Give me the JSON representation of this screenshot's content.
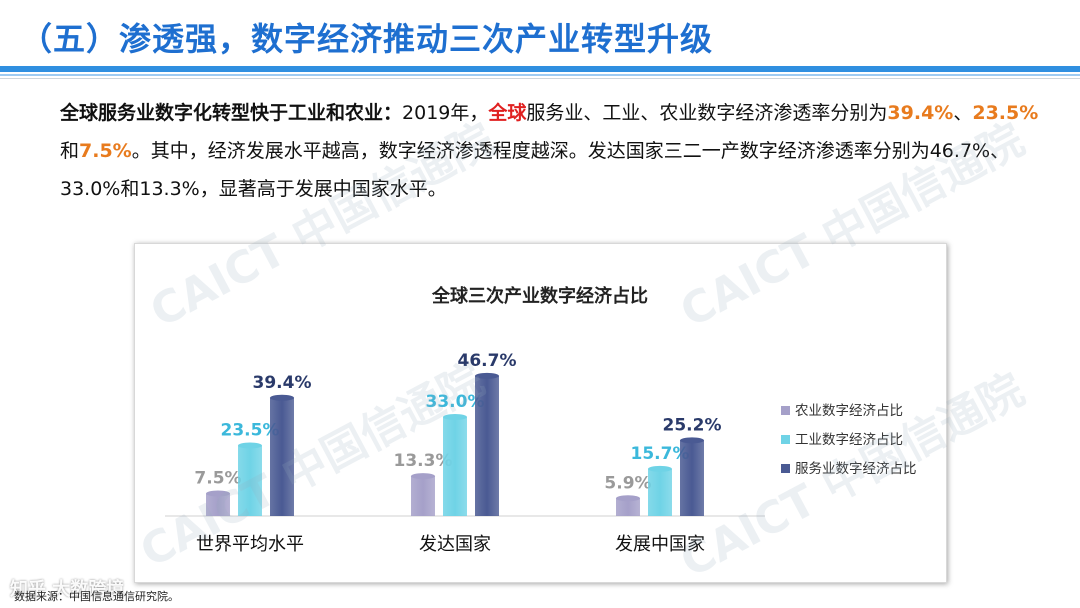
{
  "title": "（五）渗透强，数字经济推动三次产业转型升级",
  "paragraph": {
    "lead": "全球服务业数字化转型快于工业和农业：",
    "p1": "2019年，",
    "p2": "全球",
    "p3": "服务业、工业、农业数字经济渗透率分别为",
    "v1": "39.4%",
    "sep1": "、",
    "v2": "23.5%",
    "sep2": "和",
    "v3": "7.5%",
    "p4": "。其中，经济发展水平越高，数字经济渗透程度越深。发达国家三二一产数字经济渗透率分别为46.7%、33.0%和13.3%，显著高于发展中国家水平。"
  },
  "watermarks": [
    "CAICT 中国信通院",
    "CAICT 中国信通院",
    "CAICT 中国信通院",
    "CAICT 中国信通院"
  ],
  "source": "数据来源：中国信息通信研究院。",
  "source_mark": "知乎 大数跨境",
  "colors": {
    "agri": "#a5a0c9",
    "industry": "#6fd3e6",
    "service": "#4a5a93",
    "label_agri": "#9a9a9a",
    "label_industry": "#3bb8db",
    "label_service": "#2a3a6a"
  },
  "chart_data": {
    "type": "bar",
    "title": "全球三次产业数字经济占比",
    "categories": [
      "世界平均水平",
      "发达国家",
      "发展中国家"
    ],
    "series": [
      {
        "name": "农业数字经济占比",
        "values": [
          7.5,
          13.3,
          5.9
        ],
        "labels": [
          "7.5%",
          "13.3%",
          "5.9%"
        ]
      },
      {
        "name": "工业数字经济占比",
        "values": [
          23.5,
          33.0,
          15.7
        ],
        "labels": [
          "23.5%",
          "33.0%",
          "15.7%"
        ]
      },
      {
        "name": "服务业数字经济占比",
        "values": [
          39.4,
          46.7,
          25.2
        ],
        "labels": [
          "39.4%",
          "46.7%",
          "25.2%"
        ]
      }
    ],
    "ylim": [
      0,
      50
    ],
    "grid": false,
    "legend": "right"
  }
}
